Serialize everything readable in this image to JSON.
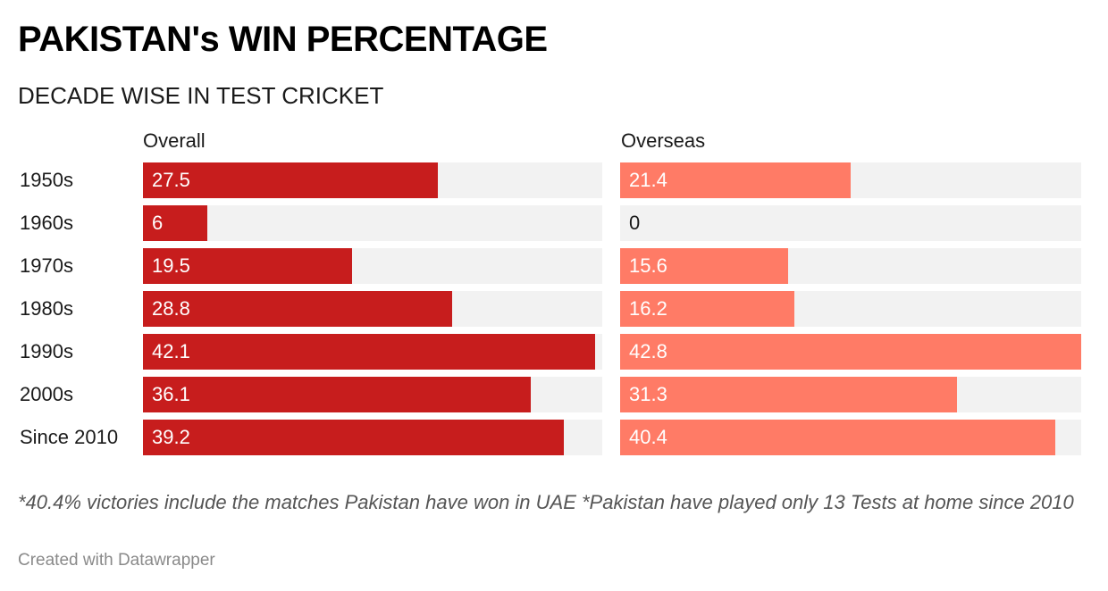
{
  "colors": {
    "overall_bar": "#c71d1d",
    "overseas_bar": "#ff7b66",
    "track": "#f2f2f2"
  },
  "notes": "*40.4% victories include the matches Pakistan have won in UAE *Pakistan have played only 13 Tests at home since 2010",
  "credit": "Created with Datawrapper",
  "chart_data": {
    "type": "bar",
    "orientation": "horizontal",
    "title": "PAKISTAN's WIN PERCENTAGE",
    "subtitle": "DECADE WISE IN TEST CRICKET",
    "categories": [
      "1950s",
      "1960s",
      "1970s",
      "1980s",
      "1990s",
      "2000s",
      "Since 2010"
    ],
    "series": [
      {
        "name": "Overall",
        "values": [
          27.5,
          6,
          19.5,
          28.8,
          42.1,
          36.1,
          39.2
        ]
      },
      {
        "name": "Overseas",
        "values": [
          21.4,
          0,
          15.6,
          16.2,
          42.8,
          31.3,
          40.4
        ]
      }
    ],
    "xlim": [
      0,
      42.8
    ],
    "grid": false,
    "legend": "column headers"
  }
}
